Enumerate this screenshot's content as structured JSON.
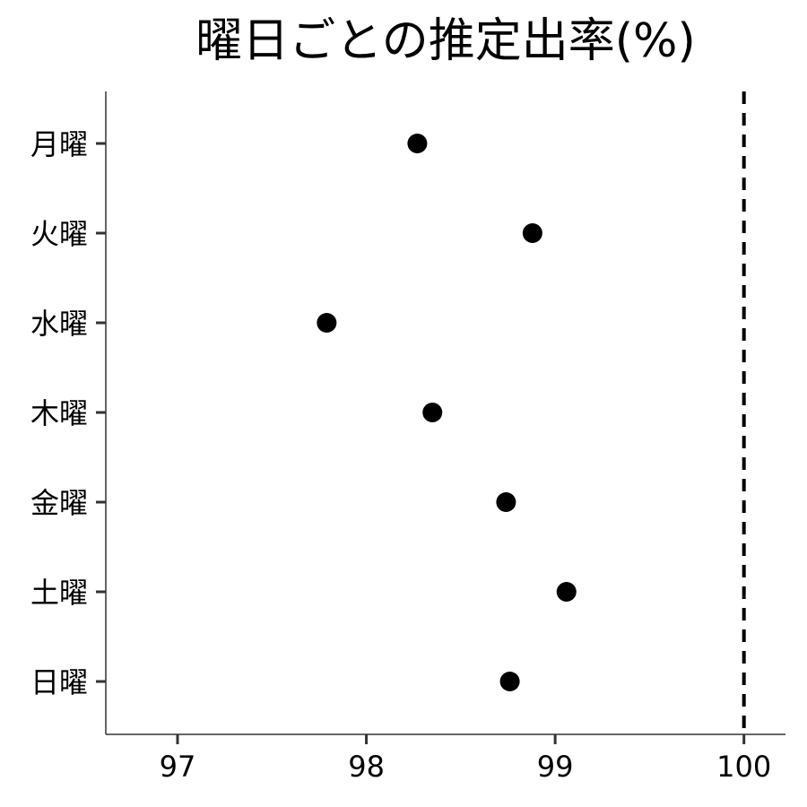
{
  "chart_data": {
    "type": "scatter",
    "title": "曜日ごとの推定出率(%)",
    "xlabel": "",
    "ylabel": "",
    "categories": [
      "月曜",
      "火曜",
      "水曜",
      "木曜",
      "金曜",
      "土曜",
      "日曜"
    ],
    "values": [
      98.27,
      98.88,
      97.79,
      98.35,
      98.74,
      99.06,
      98.76
    ],
    "xlim": [
      96.62,
      100.22
    ],
    "xticks": [
      97,
      98,
      99,
      100
    ],
    "xtick_labels": [
      "97",
      "98",
      "99",
      "100"
    ],
    "reference_line": {
      "x": 100,
      "style": "dashed"
    },
    "grid": false
  }
}
